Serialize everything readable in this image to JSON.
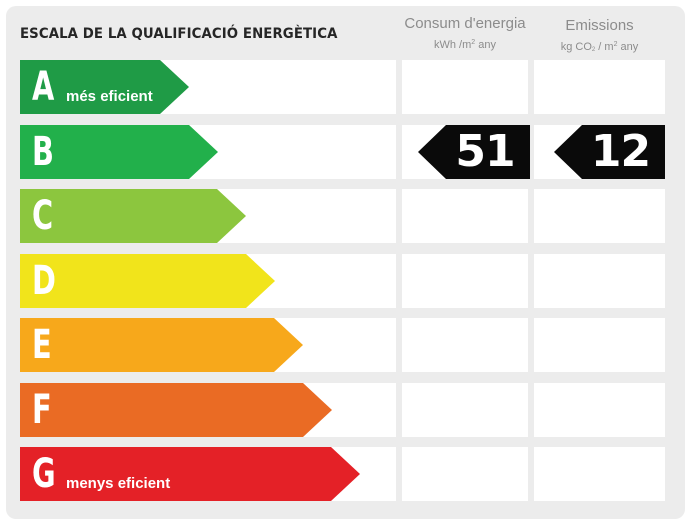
{
  "title": "ESCALA DE LA QUALIFICACIÓ ENERGÈTICA",
  "columns": {
    "consum": {
      "label": "Consum d'energia",
      "unit_a": "kWh /m",
      "unit_sup": "2",
      "unit_b": " any"
    },
    "emissions": {
      "label": "Emissions",
      "unit_a": "kg CO",
      "unit_sub": "2",
      "unit_c": " / m",
      "unit_sup": "2",
      "unit_b": " any"
    }
  },
  "chart_data": {
    "type": "table",
    "classes": [
      {
        "letter": "A",
        "label": "més eficient",
        "color": "#1f9b46"
      },
      {
        "letter": "B",
        "label": "",
        "color": "#22b04b"
      },
      {
        "letter": "C",
        "label": "",
        "color": "#8cc63e"
      },
      {
        "letter": "D",
        "label": "",
        "color": "#f1e41b"
      },
      {
        "letter": "E",
        "label": "",
        "color": "#f7a81b"
      },
      {
        "letter": "F",
        "label": "",
        "color": "#ea6b24"
      },
      {
        "letter": "G",
        "label": "menys eficient",
        "color": "#e42127"
      }
    ],
    "rating": {
      "class": "B",
      "consum": "51",
      "emissions": "12"
    }
  }
}
